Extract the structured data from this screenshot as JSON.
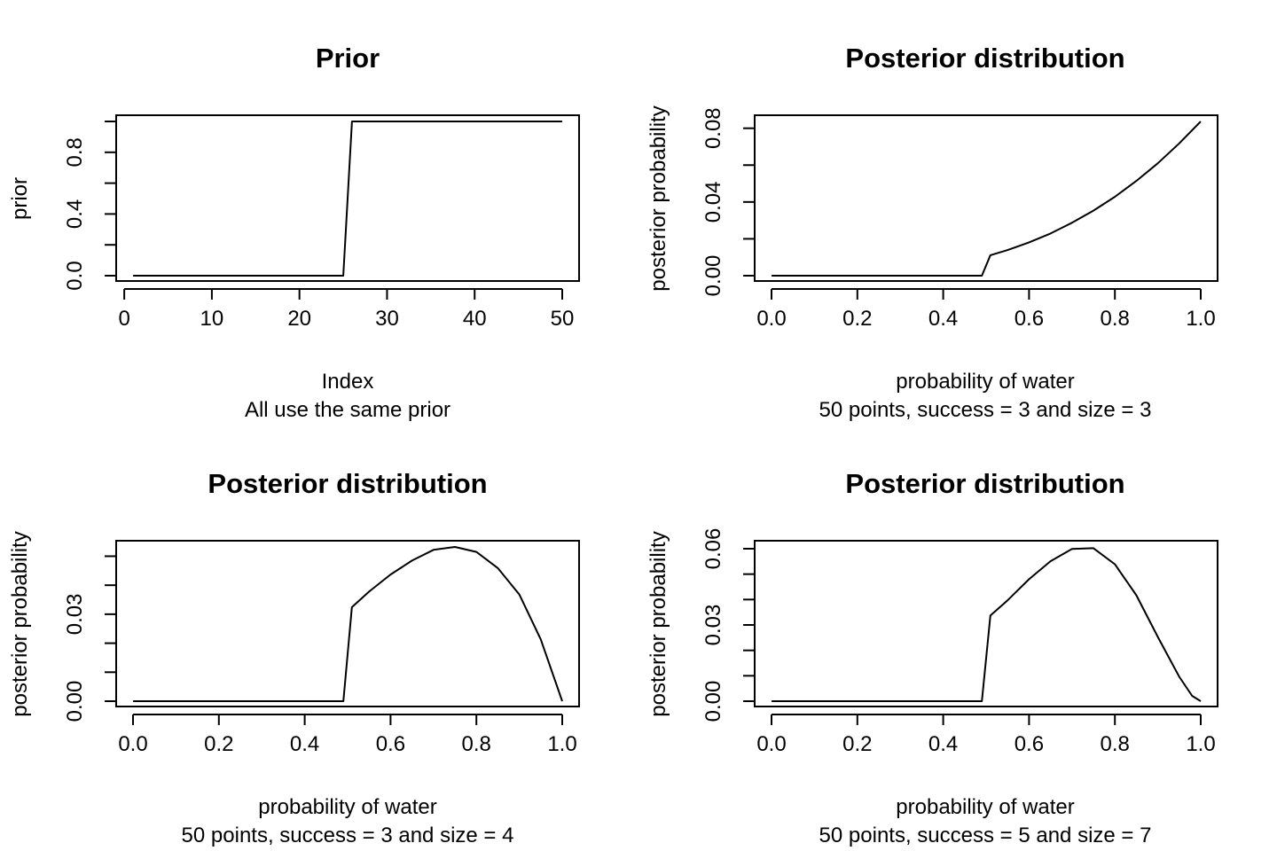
{
  "chart_data": [
    {
      "type": "line",
      "title": "Prior",
      "xlabel": "Index",
      "ylabel": "prior",
      "subtitle": "All use the same prior",
      "xlim": [
        1,
        50
      ],
      "ylim": [
        0,
        1
      ],
      "xticks": [
        0,
        10,
        20,
        30,
        40,
        50
      ],
      "xtick_labels": [
        "0",
        "10",
        "20",
        "30",
        "40",
        "50"
      ],
      "yticks": [
        0,
        0.2,
        0.4,
        0.6,
        0.8,
        1.0
      ],
      "ytick_labels": [
        "0.0",
        "",
        "0.4",
        "",
        "0.8",
        ""
      ],
      "series": [
        {
          "x": [
            1,
            25,
            26,
            50
          ],
          "y": [
            0,
            0,
            1,
            1
          ]
        }
      ]
    },
    {
      "type": "line",
      "title": "Posterior distribution",
      "xlabel": "probability of water",
      "ylabel": "posterior probability",
      "subtitle": "50 points, success = 3 and size = 3",
      "xlim": [
        0,
        1
      ],
      "ylim": [
        0,
        0.0837
      ],
      "xticks": [
        0,
        0.2,
        0.4,
        0.6,
        0.8,
        1.0
      ],
      "xtick_labels": [
        "0.0",
        "0.2",
        "0.4",
        "0.6",
        "0.8",
        "1.0"
      ],
      "yticks": [
        0,
        0.02,
        0.04,
        0.06,
        0.08
      ],
      "ytick_labels": [
        "0.00",
        "",
        "0.04",
        "",
        "0.08"
      ],
      "series": [
        {
          "x": [
            0,
            0.49,
            0.51,
            0.55,
            0.6,
            0.65,
            0.7,
            0.75,
            0.8,
            0.85,
            0.9,
            0.95,
            1.0
          ],
          "y": [
            0,
            0,
            0.0111,
            0.0139,
            0.0181,
            0.0229,
            0.0287,
            0.0353,
            0.0428,
            0.0514,
            0.061,
            0.0718,
            0.0837
          ]
        }
      ]
    },
    {
      "type": "line",
      "title": "Posterior distribution",
      "xlabel": "probability of water",
      "ylabel": "posterior probability",
      "subtitle": "50 points, success = 3 and size = 4",
      "xlim": [
        0,
        1
      ],
      "ylim": [
        0,
        0.0532
      ],
      "xticks": [
        0,
        0.2,
        0.4,
        0.6,
        0.8,
        1.0
      ],
      "xtick_labels": [
        "0.0",
        "0.2",
        "0.4",
        "0.6",
        "0.8",
        "1.0"
      ],
      "yticks": [
        0,
        0.01,
        0.02,
        0.03,
        0.04,
        0.05
      ],
      "ytick_labels": [
        "0.00",
        "",
        "",
        "0.03",
        "",
        ""
      ],
      "series": [
        {
          "x": [
            0,
            0.49,
            0.51,
            0.55,
            0.6,
            0.65,
            0.7,
            0.75,
            0.8,
            0.85,
            0.9,
            0.95,
            1.0
          ],
          "y": [
            0,
            0,
            0.0324,
            0.0378,
            0.0437,
            0.0485,
            0.0522,
            0.0532,
            0.0515,
            0.0459,
            0.0368,
            0.0213,
            0
          ]
        }
      ]
    },
    {
      "type": "line",
      "title": "Posterior distribution",
      "xlabel": "probability of water",
      "ylabel": "posterior probability",
      "subtitle": "50 points, success = 5 and size = 7",
      "xlim": [
        0,
        1
      ],
      "ylim": [
        0,
        0.0607
      ],
      "xticks": [
        0,
        0.2,
        0.4,
        0.6,
        0.8,
        1.0
      ],
      "xtick_labels": [
        "0.0",
        "0.2",
        "0.4",
        "0.6",
        "0.8",
        "1.0"
      ],
      "yticks": [
        0,
        0.01,
        0.02,
        0.03,
        0.04,
        0.05,
        0.06
      ],
      "ytick_labels": [
        "0.00",
        "",
        "",
        "0.03",
        "",
        "",
        "0.06"
      ],
      "series": [
        {
          "x": [
            0,
            0.49,
            0.51,
            0.55,
            0.6,
            0.65,
            0.7,
            0.75,
            0.8,
            0.85,
            0.9,
            0.95,
            0.98,
            1.0
          ],
          "y": [
            0,
            0,
            0.0337,
            0.0397,
            0.048,
            0.0551,
            0.0599,
            0.0602,
            0.0539,
            0.0417,
            0.0253,
            0.0096,
            0.0021,
            0
          ]
        }
      ]
    }
  ]
}
